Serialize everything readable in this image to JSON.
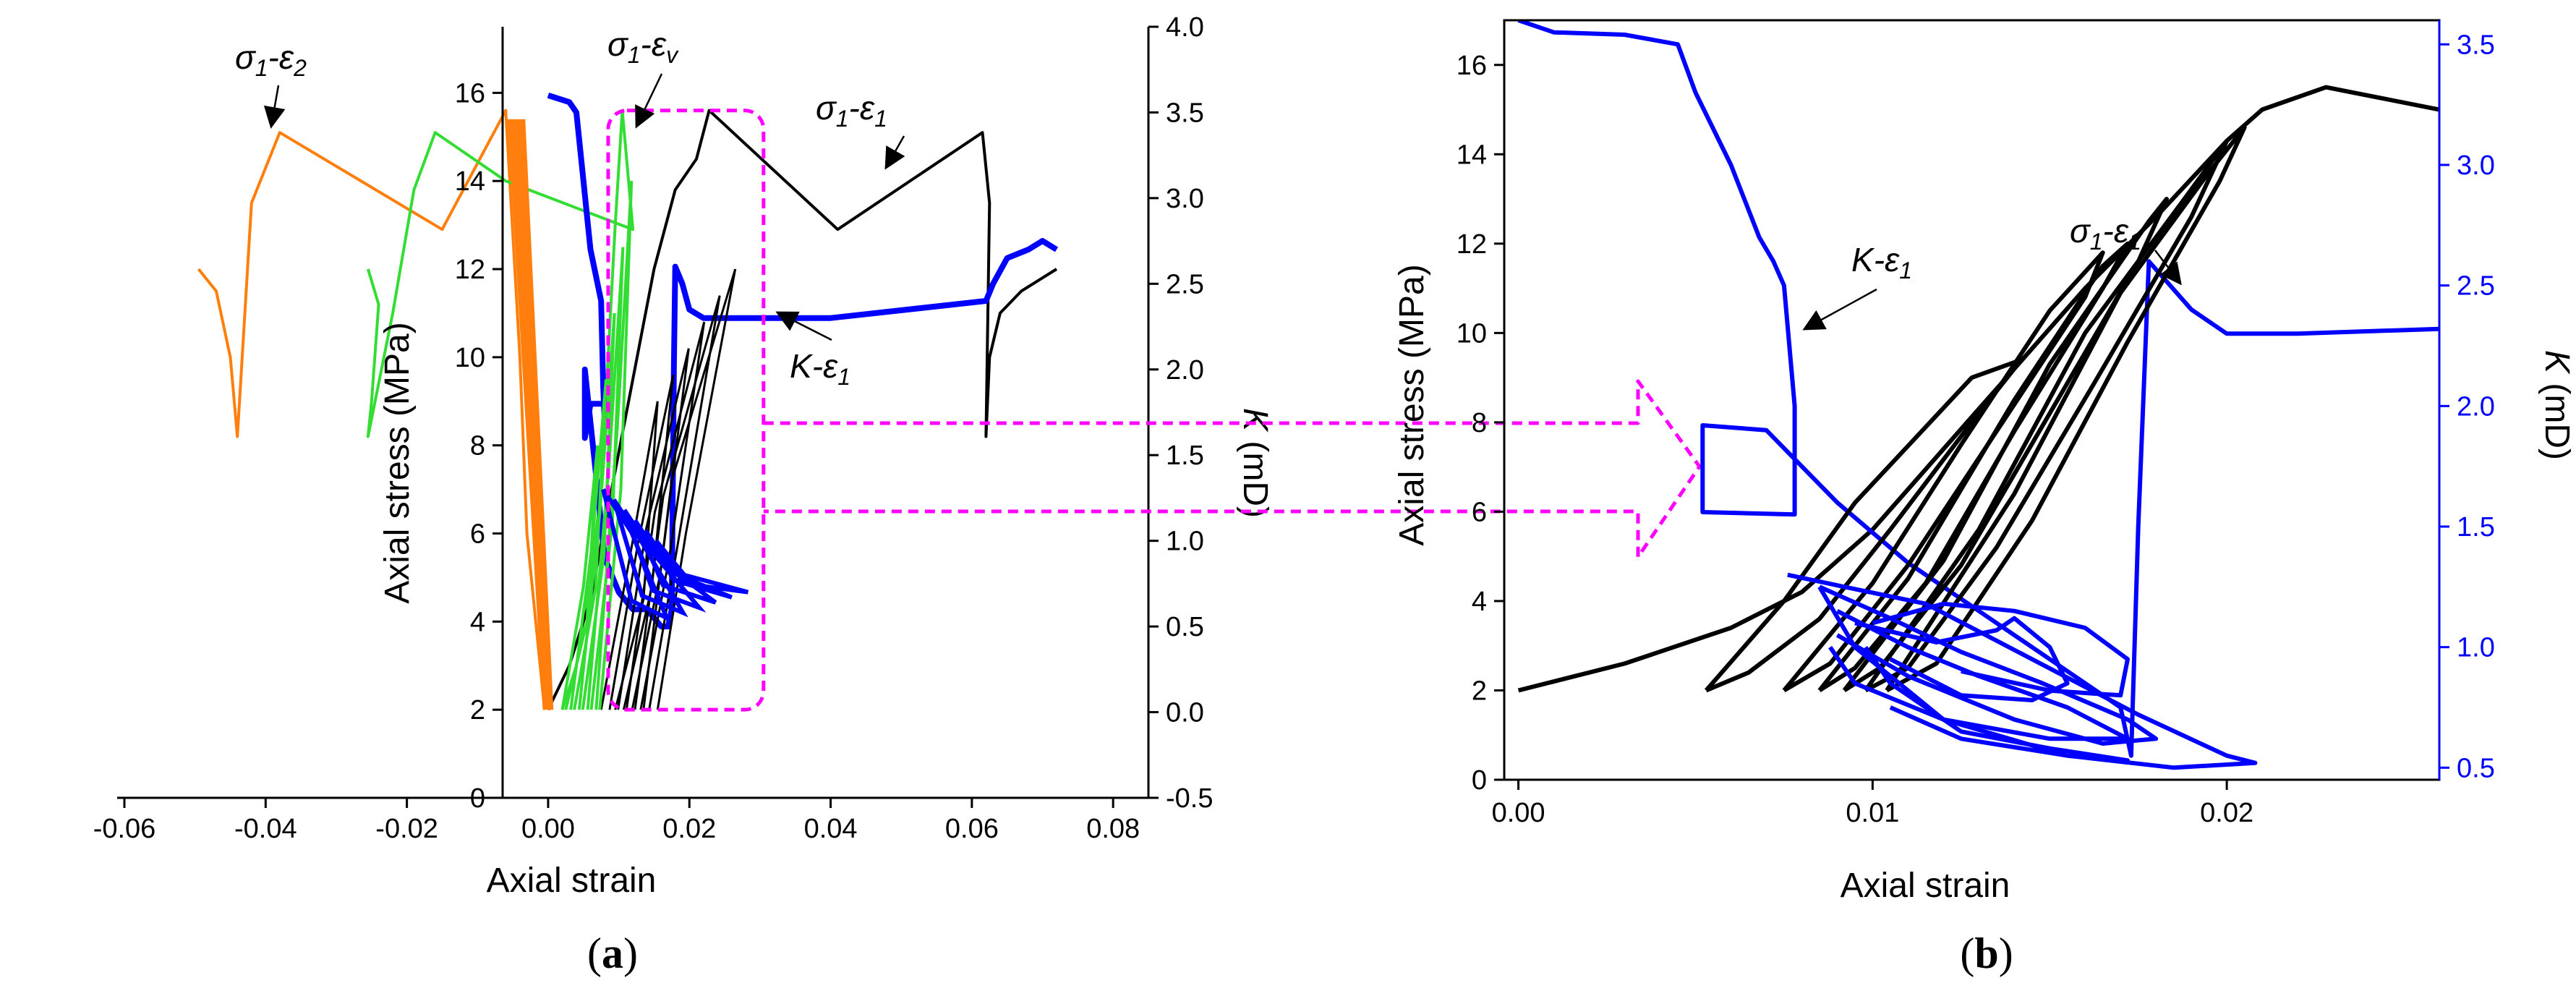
{
  "chart_data": [
    {
      "panel": "a",
      "panel_label": "(a)",
      "type": "line",
      "xlabel": "Axial strain",
      "ylabel": "Axial stress (MPa)",
      "y2label": "K (mD)",
      "xlim": [
        -0.06,
        0.085
      ],
      "ylim": [
        0,
        17.5
      ],
      "y2lim": [
        -0.5,
        4.0
      ],
      "xticks": [
        "-0.06",
        "-0.04",
        "-0.02",
        "0.00",
        "0.02",
        "0.04",
        "0.06",
        "0.08"
      ],
      "yticks": [
        "0",
        "2",
        "4",
        "6",
        "8",
        "10",
        "12",
        "14",
        "16"
      ],
      "y2ticks": [
        "-0.5",
        "0.0",
        "0.5",
        "1.0",
        "1.5",
        "2.0",
        "2.5",
        "3.0",
        "3.5",
        "4.0"
      ],
      "annotations": [
        {
          "label": "σ1-ε2",
          "main": "σ",
          "sub1": "1",
          "mid": "-ε",
          "sub2": "2"
        },
        {
          "label": "σ1-εv",
          "main": "σ",
          "sub1": "1",
          "mid": "-ε",
          "sub2": "v"
        },
        {
          "label": "σ1-ε1",
          "main": "σ",
          "sub1": "1",
          "mid": "-ε",
          "sub2": "1"
        },
        {
          "label": "K-ε1",
          "main": "K",
          "sub1": "",
          "mid": "-ε",
          "sub2": "1"
        }
      ],
      "series": [
        {
          "name": "σ1-ε2",
          "color": "#ff7f0e",
          "axis": "left",
          "x": [
            -0.0495,
            -0.047,
            -0.045,
            -0.044,
            -0.0437,
            -0.042,
            -0.038,
            -0.015,
            -0.006,
            -0.004,
            -0.003,
            -0.0005
          ],
          "y": [
            12,
            11.5,
            10,
            8.2,
            9,
            13.5,
            15.1,
            12.9,
            15.6,
            10,
            6,
            2
          ]
        },
        {
          "name": "σ1-εv",
          "color": "#33dd33",
          "axis": "left",
          "x": [
            -0.0255,
            -0.024,
            -0.025,
            -0.0255,
            -0.022,
            -0.019,
            -0.016,
            -0.006,
            0.012,
            0.0105,
            0.0095,
            0.0085,
            0.0075,
            0.006,
            0.004,
            0.002
          ],
          "y": [
            12,
            11.2,
            9,
            8.2,
            11,
            13.8,
            15.1,
            14,
            12.9,
            15.6,
            13,
            10,
            7,
            5,
            3,
            2
          ]
        },
        {
          "name": "σ1-ε1",
          "color": "#000000",
          "axis": "left",
          "x": [
            0.0,
            0.003,
            0.006,
            0.009,
            0.012,
            0.015,
            0.018,
            0.021,
            0.0228,
            0.041,
            0.0615,
            0.0625,
            0.062,
            0.0625,
            0.064,
            0.067,
            0.07,
            0.072
          ],
          "y": [
            2,
            3,
            4.5,
            7,
            9.5,
            12,
            13.8,
            14.5,
            15.6,
            12.9,
            15.1,
            13.5,
            8.2,
            10,
            11,
            11.5,
            11.8,
            12
          ]
        },
        {
          "name": "K-ε1",
          "color": "#0000ff",
          "axis": "right",
          "x": [
            0.0,
            0.003,
            0.004,
            0.0045,
            0.005,
            0.0055,
            0.006,
            0.0065,
            0.007,
            0.0075,
            0.0078,
            0.008,
            0.008,
            0.006,
            0.0052,
            0.0052,
            0.007,
            0.0075,
            0.008,
            0.01,
            0.012,
            0.014,
            0.015,
            0.016,
            0.017,
            0.0175,
            0.0178,
            0.018,
            0.019,
            0.02,
            0.022,
            0.04,
            0.062,
            0.063,
            0.065,
            0.068,
            0.07,
            0.072
          ],
          "y": [
            3.6,
            3.56,
            3.5,
            3.3,
            3.1,
            2.9,
            2.7,
            2.6,
            2.5,
            2.4,
            1.9,
            1.7,
            1.8,
            1.8,
            1.6,
            2.0,
            1.3,
            1.1,
            0.9,
            0.7,
            0.6,
            0.6,
            0.55,
            0.5,
            0.5,
            0.6,
            2.0,
            2.6,
            2.5,
            2.35,
            2.3,
            2.3,
            2.4,
            2.5,
            2.65,
            2.7,
            2.75,
            2.7
          ]
        }
      ]
    },
    {
      "panel": "b",
      "panel_label": "(b)",
      "type": "line",
      "xlabel": "Axial strain",
      "ylabel": "Axial stress (MPa)",
      "y2label": "K (mD)",
      "xlim": [
        -0.0004,
        0.026
      ],
      "ylim": [
        0,
        17
      ],
      "y2lim": [
        0.45,
        3.6
      ],
      "xticks": [
        "0.00",
        "0.01",
        "0.02"
      ],
      "yticks": [
        "0",
        "2",
        "4",
        "6",
        "8",
        "10",
        "12",
        "14",
        "16"
      ],
      "y2ticks": [
        "0.5",
        "1.0",
        "1.5",
        "2.0",
        "2.5",
        "3.0",
        "3.5"
      ],
      "annotations": [
        {
          "label": "σ1-ε1",
          "main": "σ",
          "sub1": "1",
          "mid": "-ε",
          "sub2": "1"
        },
        {
          "label": "K-ε1",
          "main": "K",
          "sub1": "",
          "mid": "-ε",
          "sub2": "1"
        }
      ],
      "series": [
        {
          "name": "σ1-ε1",
          "color": "#000000",
          "axis": "left",
          "x": [
            0.0,
            0.003,
            0.006,
            0.008,
            0.01,
            0.012,
            0.014,
            0.016,
            0.018,
            0.02,
            0.021,
            0.0228,
            0.026
          ],
          "y": [
            2,
            2.6,
            3.4,
            4.2,
            5.6,
            7.4,
            9.2,
            11,
            12.6,
            14.3,
            15,
            15.5,
            15
          ]
        },
        {
          "name": "K-ε1",
          "color": "#0000ff",
          "axis": "right",
          "x": [
            0.0,
            0.001,
            0.003,
            0.0045,
            0.005,
            0.006,
            0.0068,
            0.0072,
            0.0075,
            0.0078,
            0.0078,
            0.0052,
            0.0052,
            0.007,
            0.009,
            0.011,
            0.013,
            0.015,
            0.017,
            0.0173,
            0.0175,
            0.0178,
            0.019,
            0.02,
            0.022,
            0.026
          ],
          "y": [
            3.6,
            3.55,
            3.54,
            3.5,
            3.3,
            3.0,
            2.7,
            2.6,
            2.5,
            2.0,
            1.55,
            1.56,
            1.92,
            1.9,
            1.6,
            1.35,
            1.15,
            0.95,
            0.75,
            0.55,
            1.5,
            2.6,
            2.4,
            2.3,
            2.3,
            2.32
          ]
        }
      ]
    }
  ]
}
